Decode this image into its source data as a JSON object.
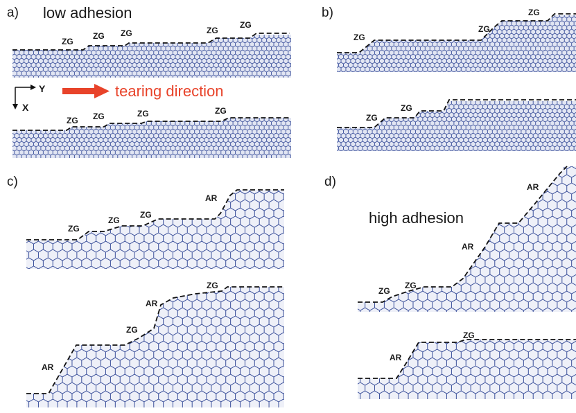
{
  "panels": {
    "a": {
      "label": "a)",
      "title": "low adhesion",
      "axis_y": "Y",
      "axis_x": "X",
      "arrow_text": "tearing direction",
      "top_labels": [
        "ZG",
        "ZG",
        "ZG",
        "ZG",
        "ZG"
      ],
      "bottom_labels": [
        "ZG",
        "ZG",
        "ZG",
        "ZG"
      ]
    },
    "b": {
      "label": "b)",
      "top_labels": [
        "ZG",
        "ZG",
        "ZG"
      ],
      "bottom_labels": [
        "ZG",
        "ZG"
      ]
    },
    "c": {
      "label": "c)",
      "top_labels": [
        "ZG",
        "ZG",
        "ZG",
        "AR"
      ],
      "bottom_labels": [
        "AR",
        "ZG",
        "AR",
        "ZG"
      ]
    },
    "d": {
      "label": "d)",
      "title": "high adhesion",
      "top_labels": [
        "ZG",
        "ZG",
        "AR",
        "AR"
      ],
      "bottom_labels": [
        "AR",
        "ZG"
      ]
    }
  },
  "colors": {
    "lattice": "#3a4f9a",
    "lattice_fill": "#dfe4f2",
    "arrow": "#e8432a",
    "edge": "#111111"
  }
}
